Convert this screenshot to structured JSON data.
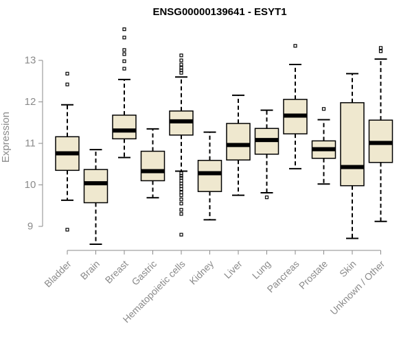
{
  "chart_data": {
    "type": "boxplot",
    "title": "ENSG00000139641 - ESYT1",
    "xlabel": "",
    "ylabel": "Expression",
    "ylim": [
      8.5,
      13.9
    ],
    "yticks": [
      9,
      10,
      11,
      12,
      13
    ],
    "colors": {
      "box_fill": "#efe8cf",
      "stroke": "#000000",
      "axis": "#8a8a8a"
    },
    "categories": [
      "Bladder",
      "Brain",
      "Breast",
      "Gastric",
      "Hematopoietic cells",
      "Kidney",
      "Liver",
      "Lung",
      "Pancreas",
      "Prostate",
      "Skin",
      "Unknown / Other"
    ],
    "boxes": [
      {
        "category": "Bladder",
        "whisker_low": 9.63,
        "q1": 10.35,
        "median": 10.76,
        "q3": 11.16,
        "whisker_high": 11.93,
        "outliers": [
          8.92,
          12.42,
          12.68
        ]
      },
      {
        "category": "Brain",
        "whisker_low": 8.57,
        "q1": 9.57,
        "median": 10.04,
        "q3": 10.37,
        "whisker_high": 10.85,
        "outliers": []
      },
      {
        "category": "Breast",
        "whisker_low": 10.66,
        "q1": 11.11,
        "median": 11.31,
        "q3": 11.68,
        "whisker_high": 12.54,
        "outliers": [
          12.8,
          12.98,
          13.15,
          13.25,
          13.55,
          13.75
        ]
      },
      {
        "category": "Gastric",
        "whisker_low": 9.69,
        "q1": 10.1,
        "median": 10.33,
        "q3": 10.81,
        "whisker_high": 11.35,
        "outliers": []
      },
      {
        "category": "Hematopoietic cells",
        "whisker_low": 10.33,
        "q1": 11.2,
        "median": 11.53,
        "q3": 11.78,
        "whisker_high": 12.6,
        "outliers": [
          8.8,
          9.3,
          9.4,
          9.55,
          9.65,
          9.75,
          9.82,
          9.9,
          9.97,
          10.03,
          10.1,
          10.17,
          10.22,
          10.28,
          12.7,
          12.76,
          12.82,
          12.9,
          13.0,
          13.12
        ]
      },
      {
        "category": "Kidney",
        "whisker_low": 9.16,
        "q1": 9.84,
        "median": 10.28,
        "q3": 10.59,
        "whisker_high": 11.27,
        "outliers": []
      },
      {
        "category": "Liver",
        "whisker_low": 9.75,
        "q1": 10.6,
        "median": 10.96,
        "q3": 11.48,
        "whisker_high": 12.16,
        "outliers": []
      },
      {
        "category": "Lung",
        "whisker_low": 9.81,
        "q1": 10.74,
        "median": 11.08,
        "q3": 11.36,
        "whisker_high": 11.8,
        "outliers": [
          9.7
        ]
      },
      {
        "category": "Pancreas",
        "whisker_low": 10.39,
        "q1": 11.23,
        "median": 11.67,
        "q3": 12.06,
        "whisker_high": 12.9,
        "outliers": [
          13.35
        ]
      },
      {
        "category": "Prostate",
        "whisker_low": 10.02,
        "q1": 10.64,
        "median": 10.86,
        "q3": 11.06,
        "whisker_high": 11.57,
        "outliers": [
          11.83
        ]
      },
      {
        "category": "Skin",
        "whisker_low": 8.71,
        "q1": 9.98,
        "median": 10.43,
        "q3": 11.98,
        "whisker_high": 12.68,
        "outliers": []
      },
      {
        "category": "Unknown / Other",
        "whisker_low": 9.12,
        "q1": 10.54,
        "median": 11.01,
        "q3": 11.56,
        "whisker_high": 13.03,
        "outliers": [
          13.22,
          13.3
        ]
      }
    ]
  }
}
